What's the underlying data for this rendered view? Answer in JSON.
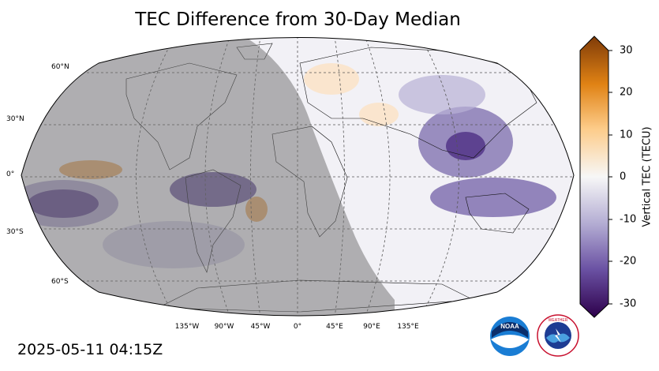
{
  "title": "TEC Difference from 30-Day Median",
  "timestamp": "2025-05-11 04:15Z",
  "map": {
    "projection": "robinson",
    "latitude_labels": [
      "60°N",
      "30°N",
      "0°",
      "30°S",
      "60°S"
    ],
    "longitude_labels": [
      "135°W",
      "90°W",
      "45°W",
      "0°",
      "45°E",
      "90°E",
      "135°E"
    ],
    "night_shading": "grey overlay over Americas and Atlantic"
  },
  "colorbar": {
    "label": "Vertical TEC (TECU)",
    "ticks": [
      "30",
      "20",
      "10",
      "0",
      "-10",
      "-20",
      "-30"
    ],
    "range": [
      -30,
      30
    ],
    "colors": {
      "high": "#7f3b08",
      "mid_high": "#fdb863",
      "zero": "#f7f7f7",
      "mid_low": "#b2abd2",
      "low": "#2d004b"
    }
  },
  "logos": [
    {
      "name": "noaa-logo",
      "text": "NOAA"
    },
    {
      "name": "nws-logo",
      "text": "NATIONAL WEATHER SERVICE"
    }
  ]
}
